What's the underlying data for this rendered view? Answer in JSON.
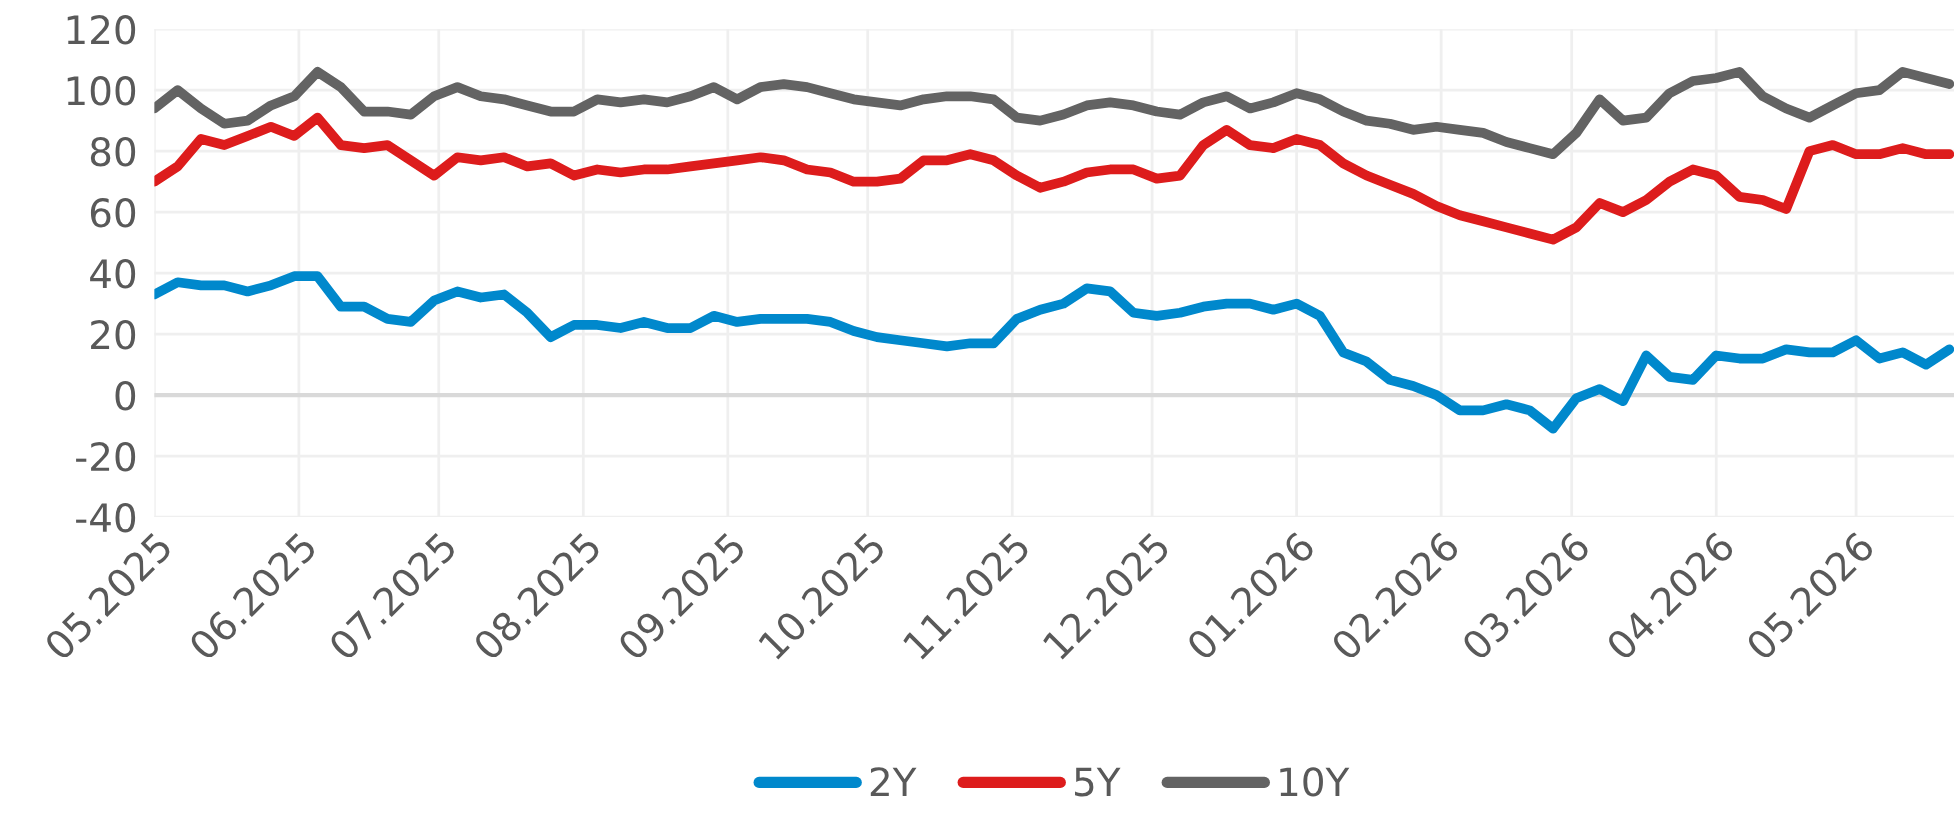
{
  "chart_data": {
    "type": "line",
    "x": [
      "2025-05-01",
      "2025-05-06",
      "2025-05-11",
      "2025-05-16",
      "2025-05-21",
      "2025-05-26",
      "2025-05-31",
      "2025-06-05",
      "2025-06-10",
      "2025-06-15",
      "2025-06-20",
      "2025-06-25",
      "2025-06-30",
      "2025-07-05",
      "2025-07-10",
      "2025-07-15",
      "2025-07-20",
      "2025-07-25",
      "2025-07-30",
      "2025-08-04",
      "2025-08-09",
      "2025-08-14",
      "2025-08-19",
      "2025-08-24",
      "2025-08-29",
      "2025-09-03",
      "2025-09-08",
      "2025-09-13",
      "2025-09-18",
      "2025-09-23",
      "2025-09-28",
      "2025-10-03",
      "2025-10-08",
      "2025-10-13",
      "2025-10-18",
      "2025-10-23",
      "2025-10-28",
      "2025-11-02",
      "2025-11-07",
      "2025-11-12",
      "2025-11-17",
      "2025-11-22",
      "2025-11-27",
      "2025-12-02",
      "2025-12-07",
      "2025-12-12",
      "2025-12-17",
      "2025-12-22",
      "2025-12-27",
      "2026-01-01",
      "2026-01-06",
      "2026-01-11",
      "2026-01-16",
      "2026-01-21",
      "2026-01-26",
      "2026-01-31",
      "2026-02-05",
      "2026-02-10",
      "2026-02-15",
      "2026-02-20",
      "2026-02-25",
      "2026-03-02",
      "2026-03-07",
      "2026-03-12",
      "2026-03-17",
      "2026-03-22",
      "2026-03-27",
      "2026-04-01",
      "2026-04-06",
      "2026-04-11",
      "2026-04-16",
      "2026-04-21",
      "2026-04-26",
      "2026-05-01",
      "2026-05-06",
      "2026-05-11",
      "2026-05-16",
      "2026-05-21"
    ],
    "series": [
      {
        "name": "2Y",
        "color": "#0088cc",
        "values": [
          33,
          37,
          36,
          36,
          34,
          36,
          39,
          39,
          29,
          29,
          25,
          24,
          31,
          34,
          32,
          33,
          27,
          19,
          23,
          23,
          22,
          24,
          22,
          22,
          26,
          24,
          25,
          25,
          25,
          24,
          21,
          19,
          18,
          17,
          16,
          17,
          17,
          25,
          28,
          30,
          35,
          34,
          27,
          26,
          27,
          29,
          30,
          30,
          28,
          30,
          26,
          14,
          11,
          5,
          3,
          0,
          -5,
          -5,
          -3,
          -5,
          -11,
          -1,
          2,
          -2,
          13,
          6,
          5,
          13,
          12,
          12,
          15,
          14,
          14,
          18,
          12,
          14,
          10,
          15
        ]
      },
      {
        "name": "5Y",
        "color": "#dd1c1c",
        "values": [
          70,
          75,
          84,
          82,
          85,
          88,
          85,
          91,
          82,
          81,
          82,
          77,
          72,
          78,
          77,
          78,
          75,
          76,
          72,
          74,
          73,
          74,
          74,
          75,
          76,
          77,
          78,
          77,
          74,
          73,
          70,
          70,
          71,
          77,
          77,
          79,
          77,
          72,
          68,
          70,
          73,
          74,
          74,
          71,
          72,
          82,
          87,
          82,
          81,
          84,
          82,
          76,
          72,
          69,
          66,
          62,
          59,
          57,
          55,
          53,
          51,
          55,
          63,
          60,
          64,
          70,
          74,
          72,
          65,
          64,
          61,
          80,
          82,
          79,
          79,
          81,
          79,
          79
        ]
      },
      {
        "name": "10Y",
        "color": "#636363",
        "values": [
          94,
          100,
          94,
          89,
          90,
          95,
          98,
          106,
          101,
          93,
          93,
          92,
          98,
          101,
          98,
          97,
          95,
          93,
          93,
          97,
          96,
          97,
          96,
          98,
          101,
          97,
          101,
          102,
          101,
          99,
          97,
          96,
          95,
          97,
          98,
          98,
          97,
          91,
          90,
          92,
          95,
          96,
          95,
          93,
          92,
          96,
          98,
          94,
          96,
          99,
          97,
          93,
          90,
          89,
          87,
          88,
          87,
          86,
          83,
          81,
          79,
          86,
          97,
          90,
          91,
          99,
          103,
          104,
          106,
          98,
          94,
          91,
          95,
          99,
          100,
          106,
          104,
          102
        ]
      }
    ],
    "xlim": [
      "2025-05-01",
      "2026-05-22"
    ],
    "xticks": [
      {
        "value": "2025-05-01",
        "label": "05.2025"
      },
      {
        "value": "2025-06-01",
        "label": "06.2025"
      },
      {
        "value": "2025-07-01",
        "label": "07.2025"
      },
      {
        "value": "2025-08-01",
        "label": "08.2025"
      },
      {
        "value": "2025-09-01",
        "label": "09.2025"
      },
      {
        "value": "2025-10-01",
        "label": "10.2025"
      },
      {
        "value": "2025-11-01",
        "label": "11.2025"
      },
      {
        "value": "2025-12-01",
        "label": "12.2025"
      },
      {
        "value": "2026-01-01",
        "label": "01.2026"
      },
      {
        "value": "2026-02-01",
        "label": "02.2026"
      },
      {
        "value": "2026-03-01",
        "label": "03.2026"
      },
      {
        "value": "2026-04-01",
        "label": "04.2026"
      },
      {
        "value": "2026-05-01",
        "label": "05.2026"
      }
    ],
    "ylim": [
      -40,
      120
    ],
    "yticks": [
      -40,
      -20,
      0,
      20,
      40,
      60,
      80,
      100,
      120
    ],
    "ref_lines": [
      {
        "axis": "y",
        "value": 0,
        "color": "#d9d9d9"
      }
    ],
    "grid": true,
    "legend": "bottom",
    "line_style": "solid",
    "marker": "none"
  }
}
